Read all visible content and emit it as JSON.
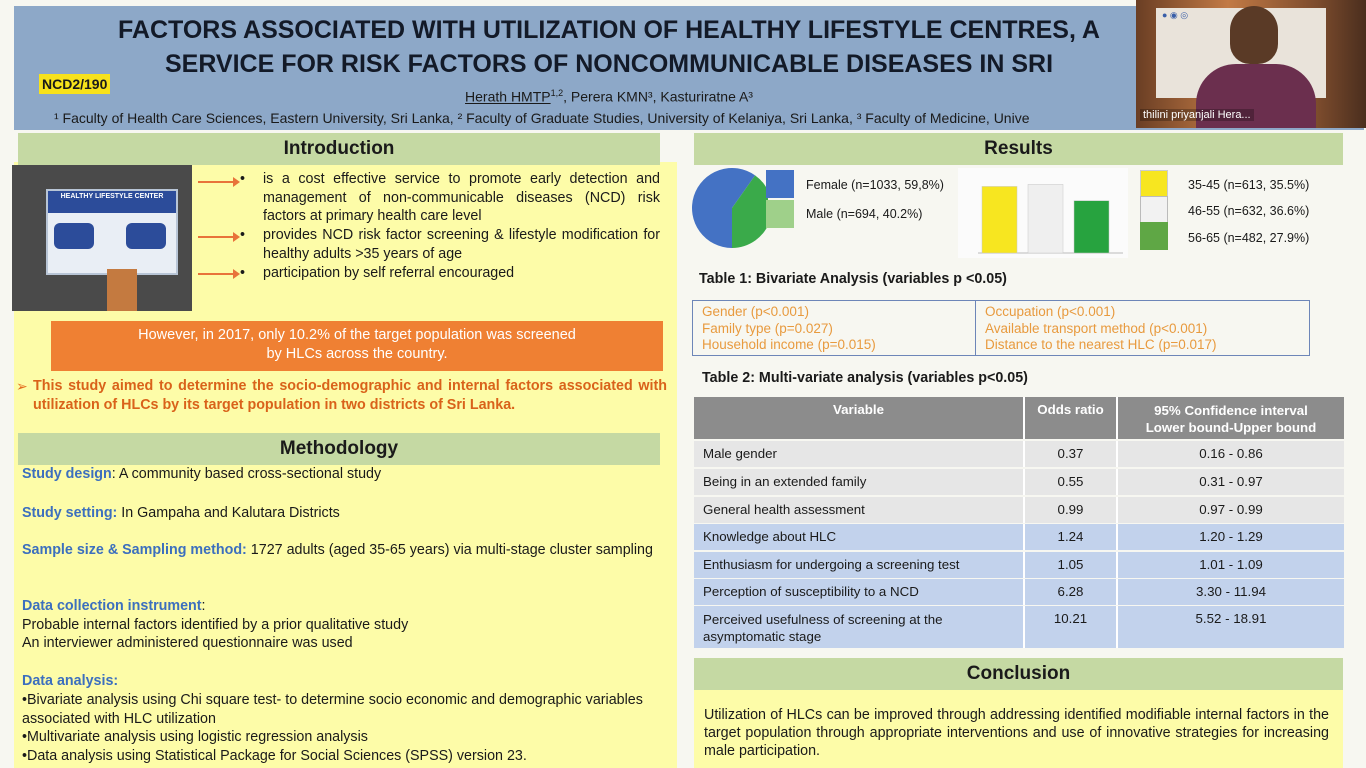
{
  "header": {
    "title_line1": "FACTORS ASSOCIATED WITH UTILIZATION OF HEALTHY LIFESTYLE CENTRES, A",
    "title_line2": "SERVICE FOR RISK FACTORS OF NONCOMMUNICABLE DISEASES IN SRI",
    "code": "NCD2/190",
    "author_first": "Herath HMTP",
    "author_first_sup": "1,2",
    "author_rest": ", Perera KMN³, Kasturiratne A³",
    "affiliations": "¹ Faculty of Health Care Sciences, Eastern University, Sri Lanka, ² Faculty of Graduate Studies, University of Kelaniya, Sri Lanka, ³ Faculty of Medicine, Unive"
  },
  "intro": {
    "heading": "Introduction",
    "bullets": [
      "is a cost effective service to promote early detection and management of non-communicable diseases (NCD) risk factors at primary health care level",
      "provides NCD risk factor screening & lifestyle modification for healthy adults >35 years of age",
      "participation by self referral encouraged"
    ],
    "photo_sign": "HEALTHY LIFESTYLE CENTER",
    "orange_line1": "However, in 2017, only 10.2% of the target population was screened",
    "orange_line2": "by HLCs across the country.",
    "aim_glyph": "➢",
    "aim": "This study aimed to determine the socio-demographic and internal factors associated with utilization of HLCs by its target population in two districts of Sri Lanka."
  },
  "methodology": {
    "heading": "Methodology",
    "design_label": "Study design",
    "design_text": ": A community based cross-sectional study",
    "setting_label": "Study setting:",
    "setting_text": " In Gampaha and Kalutara Districts",
    "sample_label": "Sample size & Sampling method:",
    "sample_text": " 1727 adults (aged 35-65 years) via multi-stage cluster sampling",
    "instrument_label": "Data collection instrument",
    "instrument_colon": ":",
    "instrument_lines": [
      "Probable internal factors identified by a prior qualitative study",
      "An interviewer administered questionnaire was used"
    ],
    "analysis_label": "Data analysis:",
    "analysis_lines": [
      "•Bivariate analysis using Chi square test- to determine socio economic and demographic variables associated  with HLC utilization",
      "•Multivariate analysis using logistic regression analysis",
      "•Data analysis using Statistical Package for Social Sciences (SPSS) version 23."
    ]
  },
  "results": {
    "heading": "Results",
    "gender_legend": [
      {
        "label": "Female (n=1033, 59,8%)",
        "color": "#4472c4"
      },
      {
        "label": "Male (n=694, 40.2%)",
        "color": "#9fd08a"
      }
    ],
    "age_legend": [
      {
        "label": "35-45 (n=613, 35.5%)",
        "color": "#f7e620"
      },
      {
        "label": "46-55  (n=632, 36.6%)",
        "color": "#f2f2f2"
      },
      {
        "label": "56-65  (n=482, 27.9%)",
        "color": "#5fa745"
      }
    ],
    "table1_title": "Table 1: Bivariate Analysis (variables p <0.05)",
    "table1_col1": [
      "Gender  (p<0.001)",
      "Family type  (p=0.027)",
      "Household income  (p=0.015)"
    ],
    "table1_col2": [
      "Occupation (p<0.001)",
      "Available transport method (p<0.001)",
      "Distance to the nearest HLC (p=0.017)"
    ],
    "table2_title": "Table 2: Multi-variate analysis (variables p<0.05)",
    "table2_header": {
      "variable": "Variable",
      "odds": "Odds ratio",
      "ci_line1": "95% Confidence interval",
      "ci_line2": "Lower bound-Upper bound"
    },
    "table2_rows": [
      {
        "variable": "Male gender",
        "odds": "0.37",
        "ci": "0.16 - 0.86"
      },
      {
        "variable": "Being in an extended family",
        "odds": "0.55",
        "ci": "0.31 - 0.97"
      },
      {
        "variable": "General health assessment",
        "odds": "0.99",
        "ci": "0.97 - 0.99"
      },
      {
        "variable": "Knowledge about HLC",
        "odds": "1.24",
        "ci": "1.20 - 1.29"
      },
      {
        "variable": "Enthusiasm for undergoing a screening test",
        "odds": "1.05",
        "ci": "1.01 - 1.09"
      },
      {
        "variable": "Perception of susceptibility to a NCD",
        "odds": "6.28",
        "ci": "3.30 - 11.94"
      },
      {
        "variable": "Perceived usefulness of screening at the asymptomatic stage",
        "odds": "10.21",
        "ci": "5.52 - 18.91"
      }
    ]
  },
  "conclusion": {
    "heading": "Conclusion",
    "text": "Utilization of HLCs can be improved through addressing identified modifiable internal factors in the target population through appropriate interventions and use of innovative strategies for increasing male participation."
  },
  "video": {
    "participant_name": "thilini priyanjali Hera..."
  },
  "chart_data": [
    {
      "type": "pie",
      "labels": [
        "Female",
        "Male"
      ],
      "values": [
        59.8,
        40.2
      ],
      "colors": [
        "#4472c4",
        "#3aaa4a"
      ]
    },
    {
      "type": "bar",
      "categories": [
        "35-45",
        "46-55",
        "56-65"
      ],
      "values": [
        35.5,
        36.6,
        27.9
      ],
      "colors": [
        "#f7e620",
        "#efefef",
        "#27a33f"
      ],
      "ylim": [
        0,
        40
      ]
    }
  ]
}
